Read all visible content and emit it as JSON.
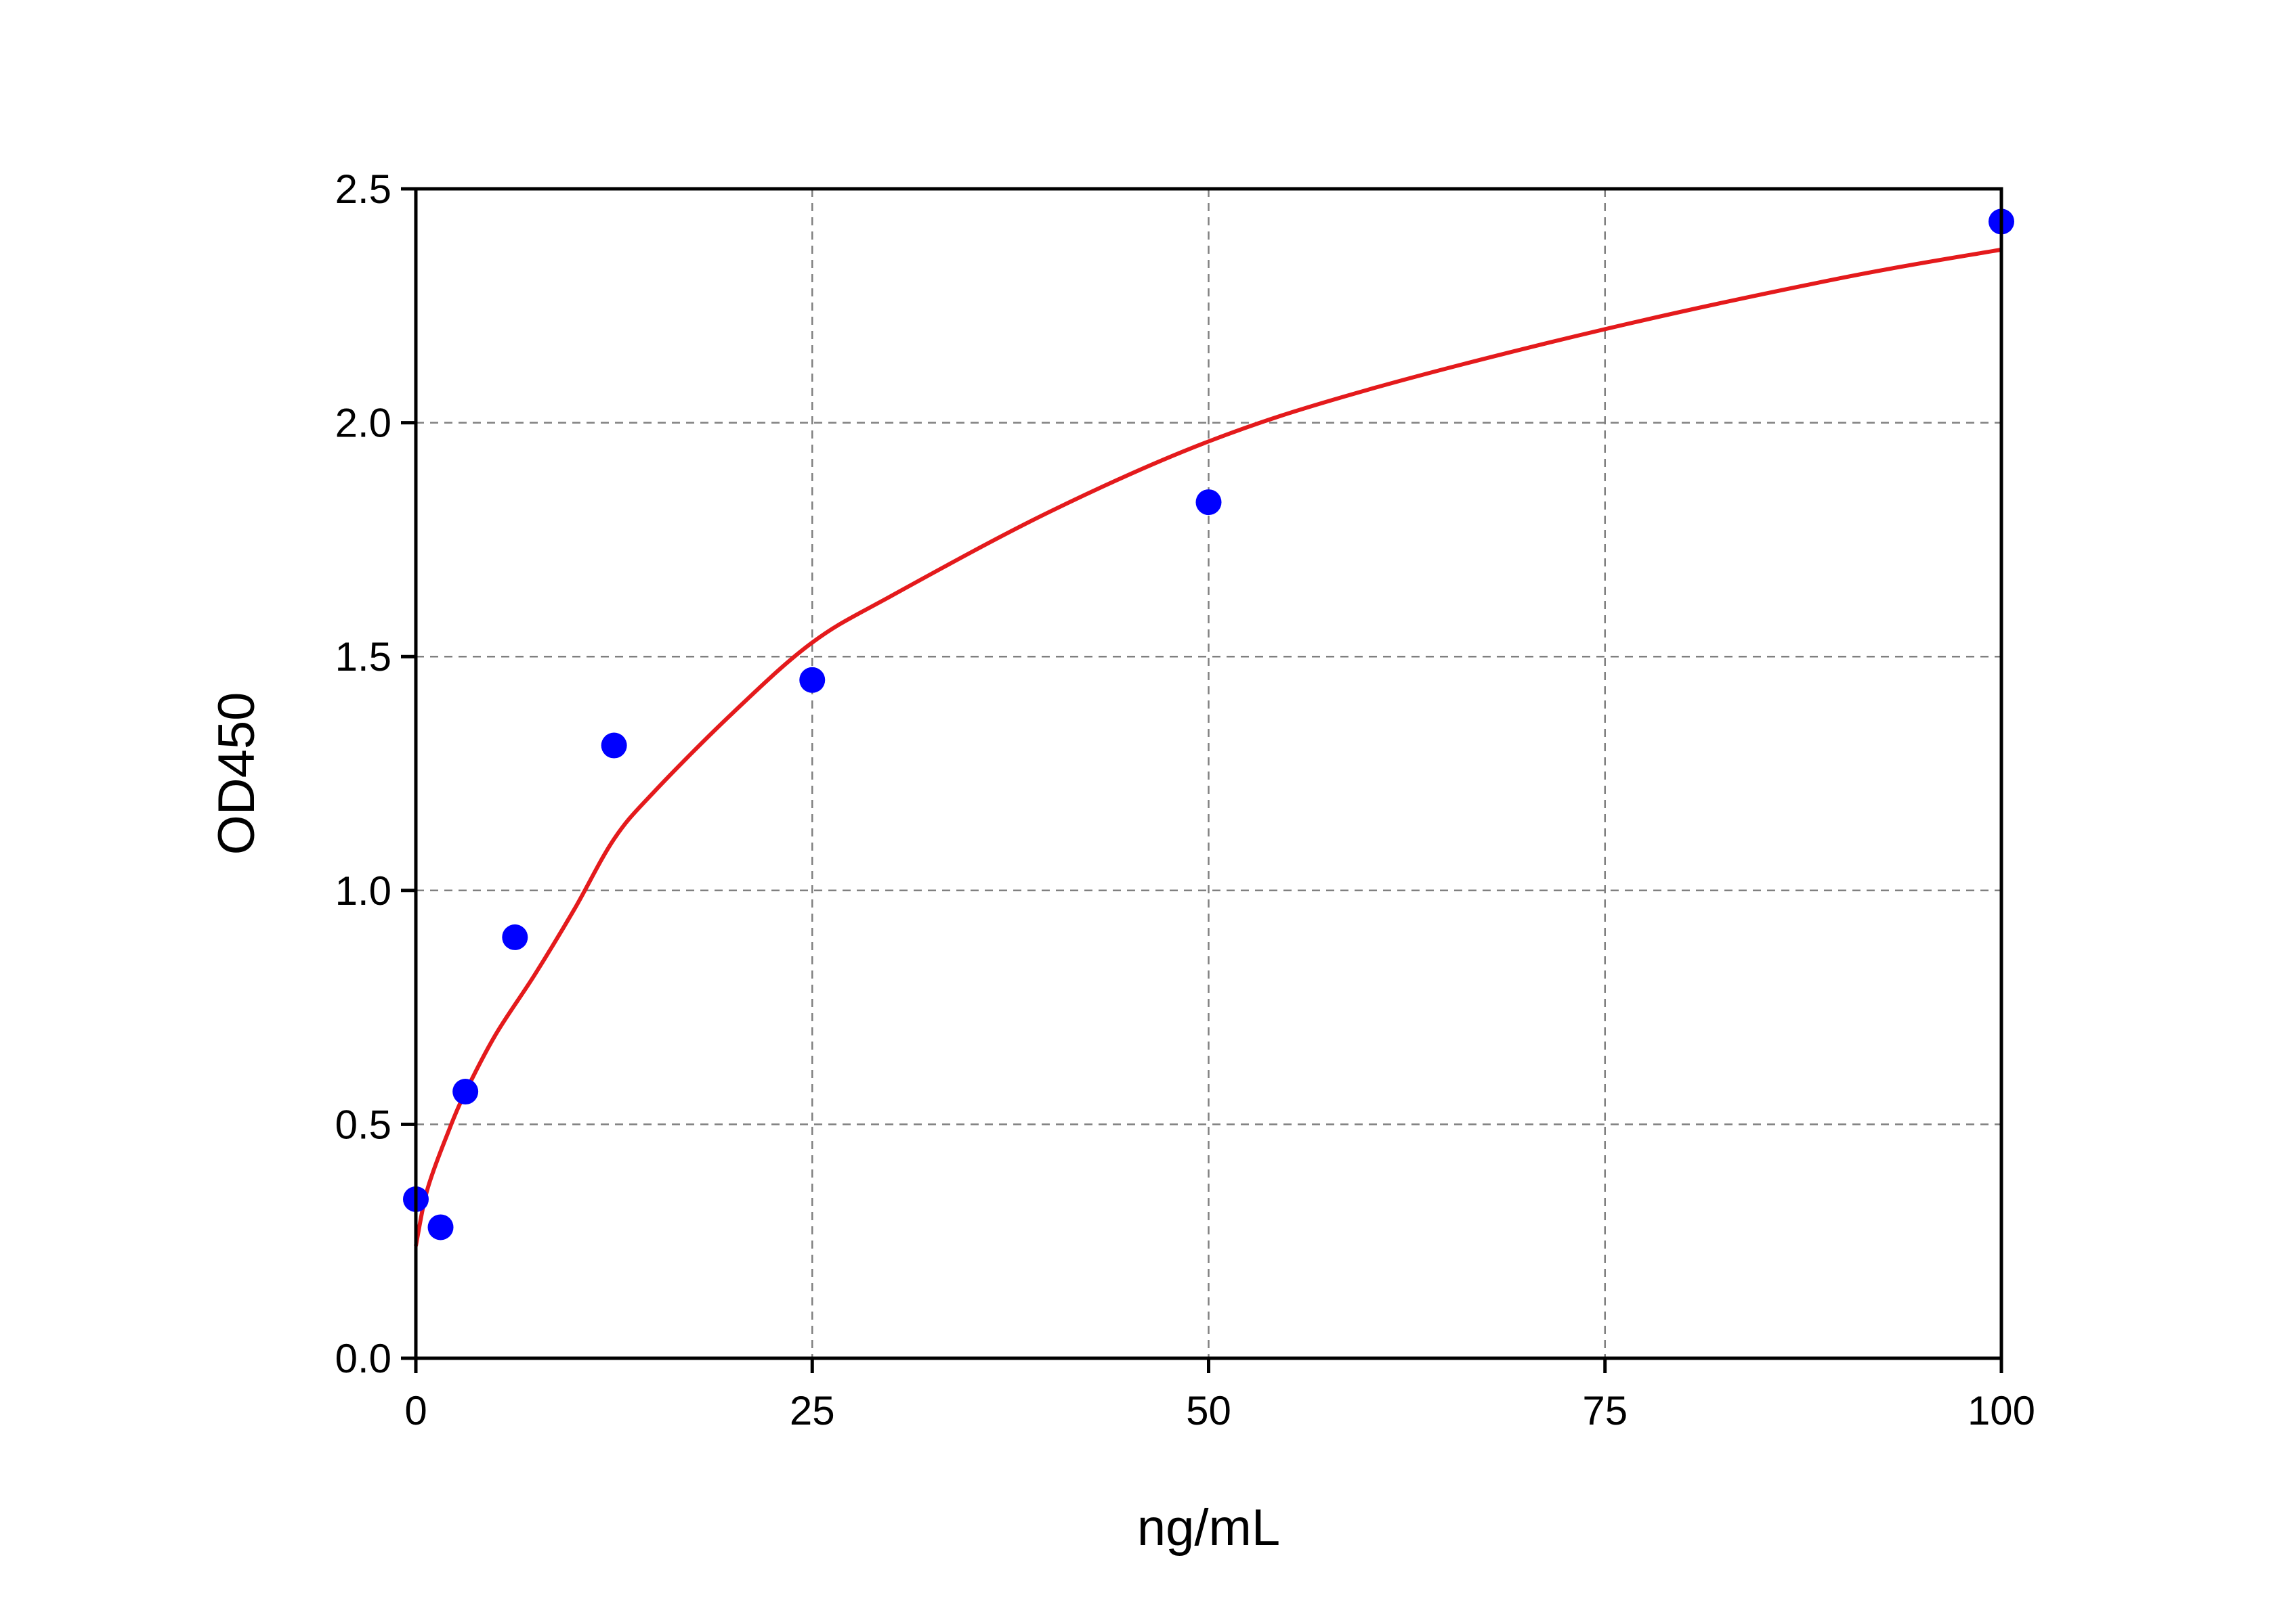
{
  "chart_data": {
    "type": "scatter",
    "title": "",
    "xlabel": "ng/mL",
    "ylabel": "OD450",
    "xlim": [
      0,
      100
    ],
    "ylim": [
      0,
      2.5
    ],
    "xticks": [
      0,
      25,
      50,
      75,
      100
    ],
    "yticks": [
      0.0,
      0.5,
      1.0,
      1.5,
      2.0,
      2.5
    ],
    "xtick_labels": [
      "0",
      "25",
      "50",
      "75",
      "100"
    ],
    "ytick_labels": [
      "0.0",
      "0.5",
      "1.0",
      "1.5",
      "2.0",
      "2.5"
    ],
    "grid": true,
    "legend": "none",
    "series": [
      {
        "kind": "points",
        "color": "#0000ff",
        "x": [
          0,
          1.56,
          3.125,
          6.25,
          12.5,
          25,
          50,
          100
        ],
        "y": [
          0.34,
          0.28,
          0.57,
          0.9,
          1.31,
          1.45,
          1.83,
          2.43
        ]
      },
      {
        "kind": "fit-curve",
        "color": "#e41a1c",
        "x": [
          0,
          0.5,
          1,
          2,
          3,
          5,
          7.5,
          10,
          12.5,
          15,
          20,
          25,
          30,
          40,
          50,
          60,
          75,
          90,
          100
        ],
        "y": [
          0.24,
          0.33,
          0.39,
          0.48,
          0.56,
          0.69,
          0.82,
          0.96,
          1.11,
          1.21,
          1.38,
          1.53,
          1.63,
          1.81,
          1.96,
          2.07,
          2.2,
          2.31,
          2.37
        ]
      }
    ]
  }
}
